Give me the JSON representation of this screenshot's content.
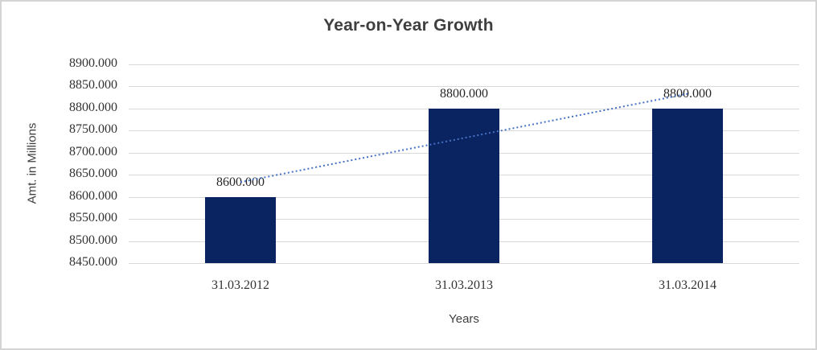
{
  "window": {
    "background": "#ffffff",
    "border_color": "#d4d4d4"
  },
  "chart_data": {
    "type": "bar",
    "title": "Year-on-Year Growth",
    "xlabel": "Years",
    "ylabel": "Amt. in Millions",
    "categories": [
      "31.03.2012",
      "31.03.2013",
      "31.03.2014"
    ],
    "series": [
      {
        "name": "Amt. in Millions",
        "values": [
          8600,
          8800,
          8800
        ]
      }
    ],
    "value_labels": [
      "8600.000",
      "8800.000",
      "8800.000"
    ],
    "ylim": [
      8450,
      8900
    ],
    "ytick_step": 50,
    "ytick_labels": [
      "8900.000",
      "8850.000",
      "8800.000",
      "8750.000",
      "8700.000",
      "8650.000",
      "8600.000",
      "8550.000",
      "8500.000",
      "8450.000"
    ],
    "grid": true,
    "legend_position": "none",
    "trendline": {
      "type": "linear",
      "style": "dotted"
    },
    "colors": {
      "bar": "#0a2361",
      "trendline": "#4472c4",
      "gridline": "#d9d9d9",
      "title_text": "#3f3f3f",
      "tick_text": "#333333"
    }
  }
}
